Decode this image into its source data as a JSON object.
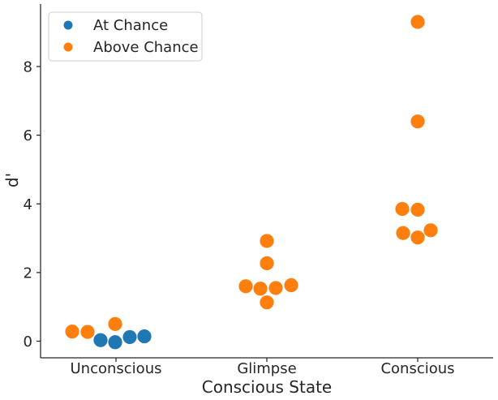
{
  "chart_data": {
    "type": "scatter",
    "xlabel": "Conscious State",
    "ylabel": "d'",
    "categories": [
      "Unconscious",
      "Glimpse",
      "Conscious"
    ],
    "ylim": [
      -0.5,
      9.8
    ],
    "yticks": [
      0,
      2,
      4,
      6,
      8
    ],
    "grid": false,
    "legend_placement": "top-left",
    "series": [
      {
        "name": "At Chance",
        "color": "#1f77b4",
        "points": [
          {
            "category": "Unconscious",
            "y": 0.03
          },
          {
            "category": "Unconscious",
            "y": -0.03
          },
          {
            "category": "Unconscious",
            "y": 0.12
          },
          {
            "category": "Unconscious",
            "y": 0.14
          }
        ]
      },
      {
        "name": "Above Chance",
        "color": "#ff7f0e",
        "points": [
          {
            "category": "Unconscious",
            "y": 0.28
          },
          {
            "category": "Unconscious",
            "y": 0.27
          },
          {
            "category": "Unconscious",
            "y": 0.5
          },
          {
            "category": "Glimpse",
            "y": 2.92
          },
          {
            "category": "Glimpse",
            "y": 2.27
          },
          {
            "category": "Glimpse",
            "y": 1.6
          },
          {
            "category": "Glimpse",
            "y": 1.53
          },
          {
            "category": "Glimpse",
            "y": 1.55
          },
          {
            "category": "Glimpse",
            "y": 1.63
          },
          {
            "category": "Glimpse",
            "y": 1.13
          },
          {
            "category": "Conscious",
            "y": 9.3
          },
          {
            "category": "Conscious",
            "y": 6.4
          },
          {
            "category": "Conscious",
            "y": 3.85
          },
          {
            "category": "Conscious",
            "y": 3.83
          },
          {
            "category": "Conscious",
            "y": 3.15
          },
          {
            "category": "Conscious",
            "y": 3.02
          },
          {
            "category": "Conscious",
            "y": 3.23
          }
        ]
      }
    ]
  }
}
